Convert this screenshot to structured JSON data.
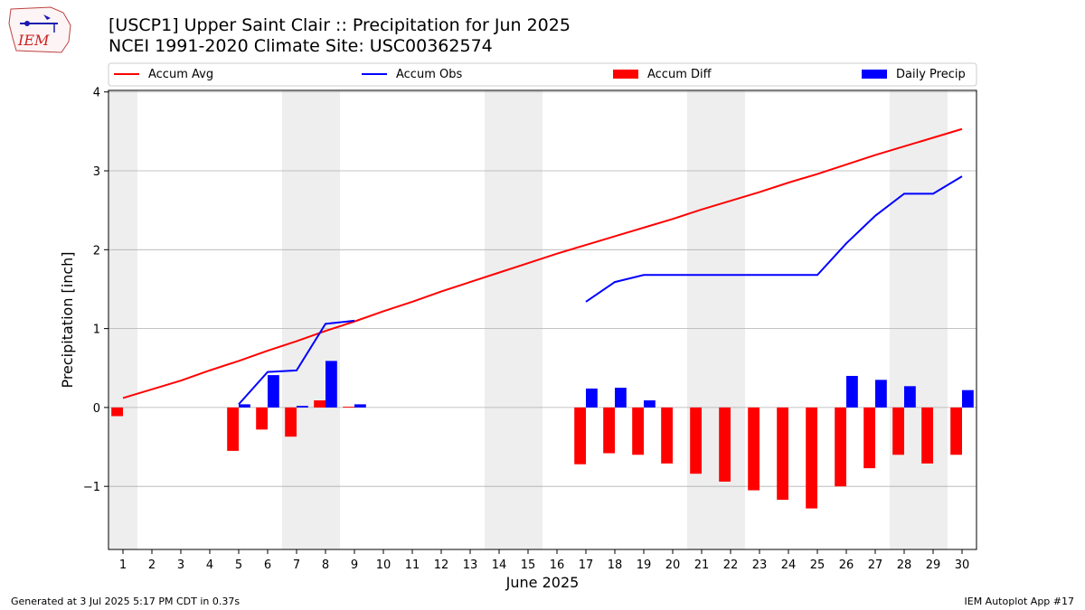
{
  "header": {
    "title_line1": "[USCP1] Upper Saint Clair :: Precipitation for Jun 2025",
    "title_line2": "NCEI 1991-2020 Climate Site: USC00362574"
  },
  "logo": {
    "text": "IEM"
  },
  "footer": {
    "left": "Generated at 3 Jul 2025 5:17 PM CDT in 0.37s",
    "right": "IEM Autoplot App #17"
  },
  "colors": {
    "avg": "#ff0000",
    "obs": "#0000ff",
    "diff": "#ff0000",
    "daily": "#0000ff",
    "weekend_shade": "#eeeeee",
    "grid": "#b0b0b0"
  },
  "chart_data": {
    "type": "bar",
    "xlabel": "June 2025",
    "ylabel": "Precipitation [inch]",
    "ylim": [
      -1.8,
      4.02
    ],
    "xlim": [
      0.5,
      30.5
    ],
    "yticks": [
      -1,
      0,
      1,
      2,
      3,
      4
    ],
    "ytick_labels": [
      "−1",
      "0",
      "1",
      "2",
      "3",
      "4"
    ],
    "grid": "horizontal",
    "legend_position": "top",
    "days": [
      1,
      2,
      3,
      4,
      5,
      6,
      7,
      8,
      9,
      10,
      11,
      12,
      13,
      14,
      15,
      16,
      17,
      18,
      19,
      20,
      21,
      22,
      23,
      24,
      25,
      26,
      27,
      28,
      29,
      30
    ],
    "shaded_days": [
      1,
      7,
      8,
      14,
      15,
      21,
      22,
      28,
      29
    ],
    "series": [
      {
        "name": "Accum Avg",
        "type": "line",
        "x": [
          1,
          2,
          3,
          4,
          5,
          6,
          7,
          8,
          9,
          10,
          11,
          12,
          13,
          14,
          15,
          16,
          17,
          18,
          19,
          20,
          21,
          22,
          23,
          24,
          25,
          26,
          27,
          28,
          29,
          30
        ],
        "values": [
          0.12,
          0.23,
          0.34,
          0.47,
          0.59,
          0.72,
          0.84,
          0.97,
          1.09,
          1.22,
          1.34,
          1.47,
          1.59,
          1.71,
          1.83,
          1.95,
          2.06,
          2.17,
          2.28,
          2.39,
          2.51,
          2.62,
          2.73,
          2.85,
          2.96,
          3.08,
          3.2,
          3.31,
          3.42,
          3.53
        ]
      },
      {
        "name": "Accum Obs",
        "type": "line",
        "segments": [
          {
            "x": [
              5,
              6,
              7,
              8,
              9
            ],
            "values": [
              0.04,
              0.45,
              0.47,
              1.06,
              1.1
            ]
          },
          {
            "x": [
              17,
              18,
              19,
              20,
              21,
              22,
              23,
              24,
              25,
              26,
              27,
              28,
              29,
              30
            ],
            "values": [
              1.34,
              1.59,
              1.68,
              1.68,
              1.68,
              1.68,
              1.68,
              1.68,
              1.68,
              2.08,
              2.43,
              2.71,
              2.71,
              2.93
            ]
          }
        ]
      },
      {
        "name": "Accum Diff",
        "type": "bar",
        "x": [
          1,
          5,
          6,
          7,
          8,
          9,
          17,
          18,
          19,
          20,
          21,
          22,
          23,
          24,
          25,
          26,
          27,
          28,
          29,
          30
        ],
        "values": [
          -0.11,
          -0.55,
          -0.28,
          -0.37,
          0.09,
          0.01,
          -0.72,
          -0.58,
          -0.6,
          -0.71,
          -0.84,
          -0.94,
          -1.05,
          -1.17,
          -1.28,
          -1.0,
          -0.77,
          -0.6,
          -0.71,
          -0.6
        ]
      },
      {
        "name": "Daily Precip",
        "type": "bar",
        "x": [
          5,
          6,
          7,
          8,
          9,
          17,
          18,
          19,
          26,
          27,
          28,
          30
        ],
        "values": [
          0.04,
          0.41,
          0.02,
          0.59,
          0.04,
          0.24,
          0.25,
          0.09,
          0.4,
          0.35,
          0.27,
          0.22
        ]
      }
    ]
  }
}
